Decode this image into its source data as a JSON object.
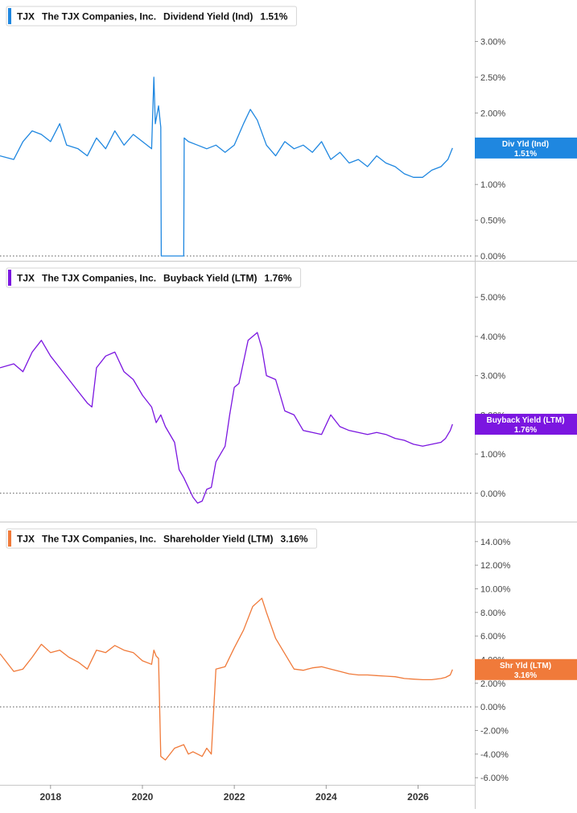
{
  "x_axis": {
    "range": [
      2016.9,
      2027.2
    ],
    "ticks": [
      2018,
      2020,
      2022,
      2024,
      2026
    ],
    "tick_labels": [
      "2018",
      "2020",
      "2022",
      "2024",
      "2026"
    ]
  },
  "chart_data": [
    {
      "type": "line",
      "ticker": "TJX",
      "company": "The TJX Companies, Inc.",
      "series_name": "Dividend Yield (Ind)",
      "current_value": "1.51%",
      "tag_label": "Div Yld (Ind)",
      "color": "#1f87e0",
      "ylim": [
        0,
        3.4
      ],
      "yticks": [
        0,
        0.5,
        1,
        1.5,
        2,
        2.5,
        3
      ],
      "ytick_labels": [
        "0.00%",
        "0.50%",
        "1.00%",
        "1.50%",
        "2.00%",
        "2.50%",
        "3.00%"
      ],
      "x": [
        2016.9,
        2017.2,
        2017.4,
        2017.6,
        2017.8,
        2018.0,
        2018.2,
        2018.35,
        2018.6,
        2018.8,
        2019.0,
        2019.2,
        2019.4,
        2019.6,
        2019.8,
        2020.0,
        2020.2,
        2020.25,
        2020.28,
        2020.35,
        2020.4,
        2020.41,
        2020.6,
        2020.8,
        2020.9,
        2020.91,
        2021.0,
        2021.2,
        2021.4,
        2021.6,
        2021.8,
        2022.0,
        2022.2,
        2022.35,
        2022.5,
        2022.7,
        2022.9,
        2023.1,
        2023.3,
        2023.5,
        2023.7,
        2023.9,
        2024.1,
        2024.3,
        2024.5,
        2024.7,
        2024.9,
        2025.1,
        2025.3,
        2025.5,
        2025.7,
        2025.9,
        2026.1,
        2026.3,
        2026.5,
        2026.65,
        2026.75
      ],
      "y": [
        1.4,
        1.35,
        1.6,
        1.75,
        1.7,
        1.6,
        1.85,
        1.55,
        1.5,
        1.4,
        1.65,
        1.5,
        1.75,
        1.55,
        1.7,
        1.6,
        1.5,
        2.5,
        1.85,
        2.1,
        1.8,
        0.0,
        0.0,
        0.0,
        0.0,
        1.65,
        1.6,
        1.55,
        1.5,
        1.55,
        1.45,
        1.55,
        1.85,
        2.05,
        1.9,
        1.55,
        1.4,
        1.6,
        1.5,
        1.55,
        1.45,
        1.6,
        1.35,
        1.45,
        1.3,
        1.35,
        1.25,
        1.4,
        1.3,
        1.25,
        1.15,
        1.1,
        1.1,
        1.2,
        1.25,
        1.35,
        1.51
      ],
      "title": "",
      "xlabel": "",
      "ylabel": ""
    },
    {
      "type": "line",
      "ticker": "TJX",
      "company": "The TJX Companies, Inc.",
      "series_name": "Buyback Yield (LTM)",
      "current_value": "1.76%",
      "tag_label": "Buyback Yield (LTM)",
      "color": "#7b16e0",
      "ylim": [
        -0.6,
        5.6
      ],
      "yticks": [
        0,
        1,
        2,
        3,
        4,
        5
      ],
      "ytick_labels": [
        "0.00%",
        "1.00%",
        "2.00%",
        "3.00%",
        "4.00%",
        "5.00%"
      ],
      "x": [
        2016.9,
        2017.2,
        2017.4,
        2017.6,
        2017.8,
        2018.0,
        2018.2,
        2018.4,
        2018.6,
        2018.8,
        2018.9,
        2019.0,
        2019.2,
        2019.4,
        2019.6,
        2019.8,
        2020.0,
        2020.2,
        2020.3,
        2020.4,
        2020.5,
        2020.7,
        2020.8,
        2020.9,
        2021.1,
        2021.2,
        2021.3,
        2021.4,
        2021.5,
        2021.6,
        2021.7,
        2021.8,
        2021.9,
        2022.0,
        2022.1,
        2022.3,
        2022.5,
        2022.6,
        2022.7,
        2022.9,
        2023.1,
        2023.3,
        2023.5,
        2023.7,
        2023.9,
        2024.1,
        2024.3,
        2024.5,
        2024.7,
        2024.9,
        2025.1,
        2025.3,
        2025.5,
        2025.7,
        2025.9,
        2026.1,
        2026.3,
        2026.5,
        2026.6,
        2026.7,
        2026.75
      ],
      "y": [
        3.2,
        3.3,
        3.1,
        3.6,
        3.9,
        3.5,
        3.2,
        2.9,
        2.6,
        2.3,
        2.2,
        3.2,
        3.5,
        3.6,
        3.1,
        2.9,
        2.5,
        2.2,
        1.8,
        2.0,
        1.7,
        1.3,
        0.6,
        0.4,
        -0.1,
        -0.25,
        -0.2,
        0.1,
        0.15,
        0.8,
        1.0,
        1.2,
        2.0,
        2.7,
        2.8,
        3.9,
        4.1,
        3.7,
        3.0,
        2.9,
        2.1,
        2.0,
        1.6,
        1.55,
        1.5,
        2.0,
        1.7,
        1.6,
        1.55,
        1.5,
        1.55,
        1.5,
        1.4,
        1.35,
        1.25,
        1.2,
        1.25,
        1.3,
        1.4,
        1.6,
        1.76
      ],
      "title": "",
      "xlabel": "",
      "ylabel": ""
    },
    {
      "type": "line",
      "ticker": "TJX",
      "company": "The TJX Companies, Inc.",
      "series_name": "Shareholder Yield (LTM)",
      "current_value": "3.16%",
      "tag_label": "Shr Yld (LTM)",
      "color": "#f07a3a",
      "ylim": [
        -6.4,
        14.6
      ],
      "yticks": [
        -6,
        -4,
        -2,
        0,
        2,
        4,
        6,
        8,
        10,
        12,
        14
      ],
      "ytick_labels": [
        "-6.00%",
        "-4.00%",
        "-2.00%",
        "0.00%",
        "2.00%",
        "4.00%",
        "6.00%",
        "8.00%",
        "10.00%",
        "12.00%",
        "14.00%"
      ],
      "x": [
        2016.9,
        2017.2,
        2017.4,
        2017.6,
        2017.8,
        2018.0,
        2018.2,
        2018.4,
        2018.6,
        2018.8,
        2019.0,
        2019.2,
        2019.4,
        2019.6,
        2019.8,
        2020.0,
        2020.2,
        2020.25,
        2020.3,
        2020.35,
        2020.4,
        2020.5,
        2020.7,
        2020.9,
        2021.0,
        2021.1,
        2021.3,
        2021.4,
        2021.5,
        2021.6,
        2021.8,
        2022.0,
        2022.2,
        2022.4,
        2022.6,
        2022.7,
        2022.9,
        2023.1,
        2023.3,
        2023.5,
        2023.7,
        2023.9,
        2024.1,
        2024.3,
        2024.5,
        2024.7,
        2024.9,
        2025.1,
        2025.3,
        2025.5,
        2025.7,
        2025.9,
        2026.1,
        2026.3,
        2026.5,
        2026.6,
        2026.7,
        2026.75
      ],
      "y": [
        4.5,
        3.0,
        3.2,
        4.2,
        5.3,
        4.6,
        4.8,
        4.2,
        3.8,
        3.2,
        4.8,
        4.6,
        5.2,
        4.8,
        4.6,
        3.9,
        3.6,
        4.8,
        4.3,
        4.1,
        -4.2,
        -4.5,
        -3.5,
        -3.2,
        -4.0,
        -3.8,
        -4.2,
        -3.5,
        -4.0,
        3.2,
        3.4,
        5.0,
        6.5,
        8.5,
        9.2,
        8.0,
        5.8,
        4.5,
        3.2,
        3.1,
        3.3,
        3.4,
        3.2,
        3.0,
        2.8,
        2.7,
        2.7,
        2.65,
        2.6,
        2.55,
        2.4,
        2.35,
        2.3,
        2.3,
        2.4,
        2.5,
        2.7,
        3.16
      ],
      "title": "",
      "xlabel": "",
      "ylabel": ""
    }
  ]
}
